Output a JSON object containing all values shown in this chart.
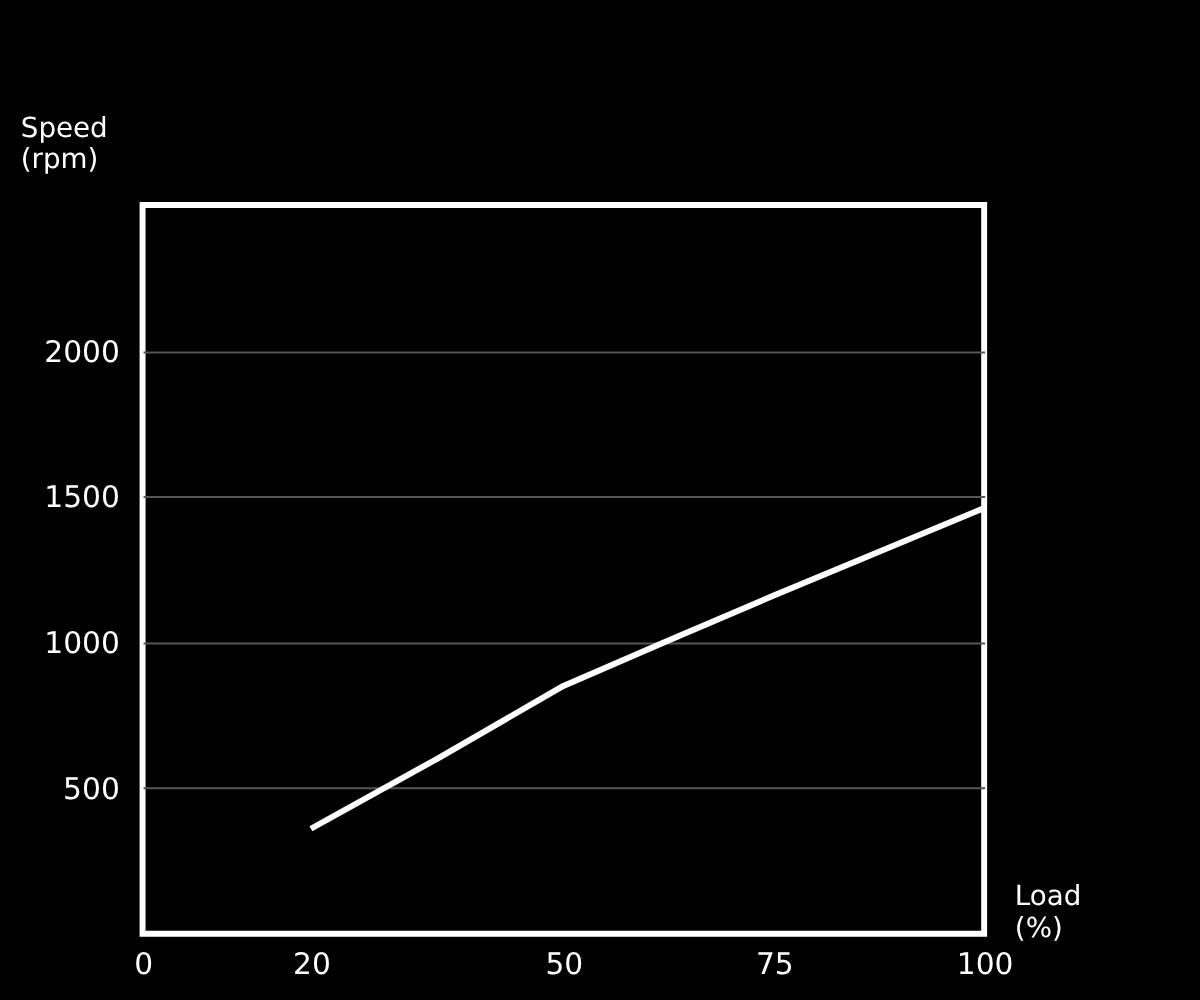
{
  "chart_data": {
    "type": "line",
    "xlabel": "Load (%)",
    "ylabel": "Speed (rpm)",
    "x": [
      20,
      35,
      50,
      62,
      75,
      100
    ],
    "series": [
      {
        "color": "#ffffff",
        "values": [
          360,
          600,
          850,
          1000,
          1160,
          1460
        ]
      }
    ],
    "xlim": [
      0,
      100
    ],
    "xticks": [
      0,
      20,
      50,
      75,
      100
    ],
    "ylim": [
      0,
      2500
    ],
    "yticks": [
      500,
      1000,
      1500,
      2000
    ],
    "grid": "y",
    "marker": "none",
    "line_style": "solid"
  }
}
